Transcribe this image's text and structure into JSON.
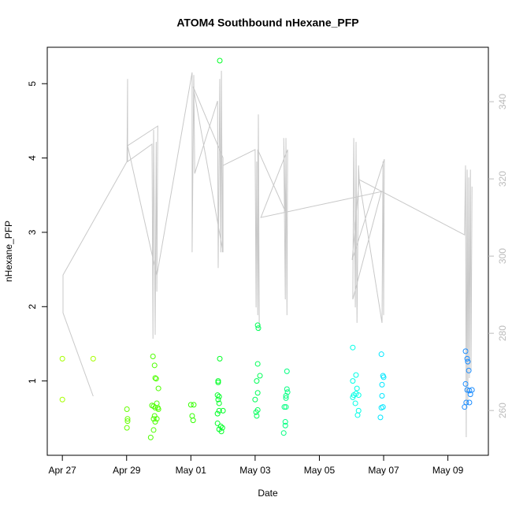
{
  "chart_data": {
    "type": "scatter",
    "title": "ATOM4 Southbound nHexane_PFP",
    "x_label": "Date",
    "y_label": "nHexane_PFP",
    "xlim": [
      -0.47,
      13.26
    ],
    "ylim": [
      0.0,
      5.49
    ],
    "y2lim": [
      248.4,
      354.1
    ],
    "xticks": [
      {
        "value": 0,
        "label": "Apr 27"
      },
      {
        "value": 2,
        "label": "Apr 29"
      },
      {
        "value": 4,
        "label": "May 01"
      },
      {
        "value": 6,
        "label": "May 03"
      },
      {
        "value": 8,
        "label": "May 05"
      },
      {
        "value": 10,
        "label": "May 07"
      },
      {
        "value": 12,
        "label": "May 09"
      }
    ],
    "yticks": [
      1,
      2,
      3,
      4,
      5
    ],
    "y2ticks": [
      260,
      280,
      300,
      320,
      340
    ],
    "y2_color": "#bbbbbb",
    "marker": "open-circle",
    "series": [
      {
        "color": "#a6ff00",
        "x": [
          0,
          0,
          0.96
        ],
        "values": [
          1.3,
          0.75,
          1.3
        ]
      },
      {
        "color": "#66ff00",
        "x": [
          2.01,
          2.03,
          2.03,
          2.01
        ],
        "values": [
          0.62,
          0.49,
          0.46,
          0.37
        ]
      },
      {
        "color": "#4dff00",
        "x": [
          2.82,
          2.87,
          2.89,
          2.92,
          2.99,
          2.79,
          2.84,
          2.89,
          2.94,
          2.97,
          2.99,
          2.87,
          2.94,
          2.84,
          2.89,
          2.84,
          2.75
        ],
        "values": [
          1.33,
          1.21,
          1.04,
          1.03,
          0.9,
          0.67,
          0.66,
          0.64,
          0.7,
          0.64,
          0.62,
          0.53,
          0.49,
          0.49,
          0.45,
          0.34,
          0.24
        ]
      },
      {
        "color": "#33ff00",
        "x": [
          4.0,
          4.09,
          4.04,
          4.07
        ],
        "values": [
          0.68,
          0.68,
          0.53,
          0.47
        ]
      },
      {
        "color": "#00ff26",
        "x": [
          4.9,
          4.9,
          4.85,
          4.85,
          4.83,
          4.88,
          4.85,
          4.88,
          4.83,
          4.88,
          5.0,
          4.83,
          4.93,
          4.98,
          4.95,
          4.88
        ],
        "values": [
          5.31,
          1.3,
          1.0,
          0.98,
          0.81,
          0.79,
          0.75,
          0.7,
          0.56,
          0.6,
          0.6,
          0.43,
          0.39,
          0.37,
          0.32,
          0.35
        ]
      },
      {
        "color": "#00ff59",
        "x": [
          6.08,
          6.1,
          6.08,
          6.15,
          6.05,
          6.08,
          6.0,
          6.08,
          6.03,
          6.05
        ],
        "values": [
          1.75,
          1.71,
          1.23,
          1.07,
          1.0,
          0.84,
          0.75,
          0.61,
          0.58,
          0.53
        ]
      },
      {
        "color": "#00ff80",
        "x": [
          6.99,
          6.99,
          7.01,
          6.96,
          6.96,
          6.91,
          6.96,
          6.94,
          6.94,
          6.89
        ],
        "values": [
          1.13,
          0.89,
          0.85,
          0.8,
          0.77,
          0.65,
          0.65,
          0.45,
          0.4,
          0.3
        ]
      },
      {
        "color": "#00ffe6",
        "x": [
          9.04,
          9.14,
          9.04,
          9.17,
          9.14,
          9.07,
          9.22,
          9.04,
          9.12,
          9.22,
          9.19
        ],
        "values": [
          1.45,
          1.08,
          1.0,
          0.9,
          0.83,
          0.81,
          0.81,
          0.78,
          0.7,
          0.6,
          0.54
        ]
      },
      {
        "color": "#00e6ff",
        "x": [
          9.93,
          9.98,
          10.0,
          9.95,
          9.95,
          9.98,
          9.93,
          9.9
        ],
        "values": [
          1.36,
          1.07,
          1.05,
          0.95,
          0.8,
          0.65,
          0.64,
          0.51
        ]
      },
      {
        "color": "#1a8cff",
        "x": [
          12.55,
          12.6,
          12.62,
          12.65,
          12.55,
          12.6,
          12.67,
          12.75,
          12.7,
          12.57,
          12.67,
          12.52
        ],
        "values": [
          1.4,
          1.3,
          1.26,
          1.14,
          0.96,
          0.88,
          0.87,
          0.88,
          0.82,
          0.71,
          0.71,
          0.65
        ]
      }
    ],
    "line": {
      "axis": "y2",
      "color": "#c8c8c8",
      "x": [
        0.96,
        0.02,
        0.02,
        2.01,
        2.03,
        2.03,
        2.79,
        2.82,
        2.84,
        2.89,
        2.92,
        2.94,
        2.97,
        2.03,
        2.94,
        4.04,
        4.04,
        4.09,
        4.12,
        4.83,
        4.85,
        4.9,
        4.93,
        4.95,
        4.98,
        5.0,
        4.07,
        5.0,
        5.0,
        6.0,
        6.03,
        6.05,
        6.08,
        6.1,
        6.13,
        6.08,
        6.94,
        6.89,
        6.94,
        6.96,
        6.99,
        7.01,
        6.18,
        9.93,
        9.04,
        9.07,
        9.12,
        9.14,
        9.17,
        9.22,
        9.24,
        9.95,
        9.98,
        10.0,
        10.02,
        9.02,
        9.24,
        12.52,
        12.55,
        12.57,
        12.6,
        12.62,
        12.65,
        12.67,
        12.7,
        12.72,
        12.75
      ],
      "values": [
        263.7,
        285.3,
        295.1,
        324.5,
        345.9,
        324.5,
        329.0,
        278.6,
        332.7,
        279.6,
        329.6,
        290.8,
        333.7,
        328.6,
        294.9,
        347.6,
        301.0,
        346.9,
        321.4,
        340.2,
        296.9,
        345.9,
        301.0,
        348.0,
        301.0,
        325.5,
        343.9,
        301.0,
        323.5,
        327.6,
        286.7,
        324.5,
        284.7,
        336.7,
        280.6,
        327.6,
        311.6,
        330.6,
        288.8,
        330.6,
        284.7,
        327.6,
        310.0,
        316.7,
        288.8,
        330.6,
        286.7,
        329.6,
        282.7,
        323.5,
        319.8,
        282.7,
        324.5,
        284.7,
        325.1,
        299.0,
        319.8,
        305.5,
        323.5,
        253.1,
        322.4,
        262.2,
        320.4,
        268.4,
        322.4,
        270.4,
        318.0
      ]
    }
  }
}
